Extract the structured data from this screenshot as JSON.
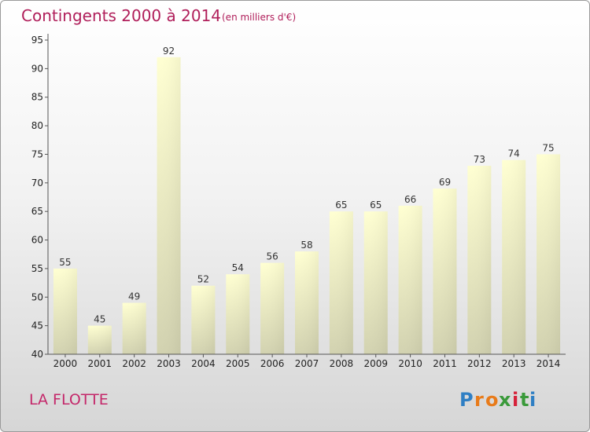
{
  "chart_data": {
    "type": "bar",
    "title": "Contingents 2000 à 2014",
    "subtitle": "(en milliers d'€)",
    "categories": [
      "2000",
      "2001",
      "2002",
      "2003",
      "2004",
      "2005",
      "2006",
      "2007",
      "2008",
      "2009",
      "2010",
      "2011",
      "2012",
      "2013",
      "2014"
    ],
    "values": [
      55,
      45,
      49,
      92,
      52,
      54,
      56,
      58,
      65,
      65,
      66,
      69,
      73,
      74,
      75
    ],
    "ylim": [
      40,
      95
    ],
    "yticks": [
      "40",
      "45",
      "50",
      "55",
      "60",
      "65",
      "70",
      "75",
      "80",
      "85",
      "90",
      "95"
    ],
    "grid": false,
    "legend": "none"
  },
  "footer": {
    "place_label": "LA FLOTTE"
  },
  "logo": {
    "letters": [
      "P",
      "r",
      "o",
      "x",
      "i",
      "t",
      "i"
    ],
    "colors": [
      "#2f7fc4",
      "#e87b1a",
      "#e87b1a",
      "#3a9a3a",
      "#d6223a",
      "#3a9a3a",
      "#2f7fc4"
    ]
  },
  "colors": {
    "title": "#b01e5a",
    "bar_top": "#ffffd2",
    "bar_bottom": "#d2d2b0"
  }
}
